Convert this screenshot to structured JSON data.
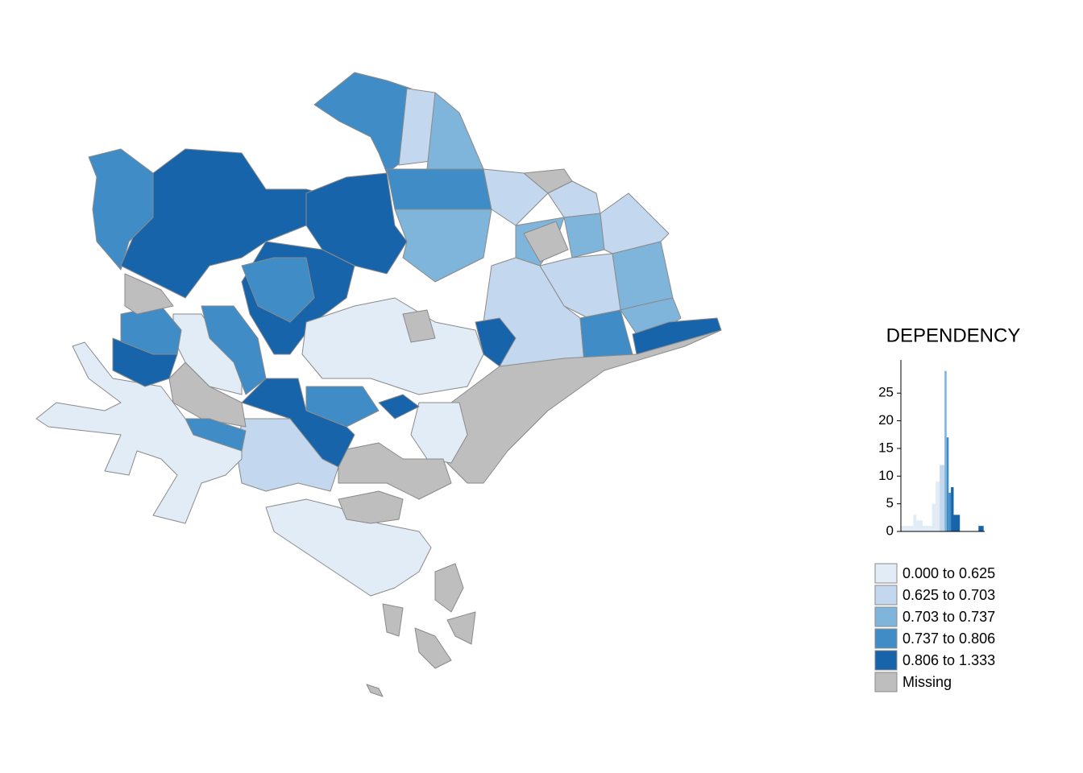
{
  "legend": {
    "title": "DEPENDENCY",
    "classes": [
      {
        "label": "0.000 to 0.625",
        "color": "#e1ecf7"
      },
      {
        "label": "0.625 to 0.703",
        "color": "#c3d8ee"
      },
      {
        "label": "0.703 to 0.737",
        "color": "#7fb5da"
      },
      {
        "label": "0.737 to 0.806",
        "color": "#3f8cc6"
      },
      {
        "label": "0.806 to 1.333",
        "color": "#1764ab"
      },
      {
        "label": "Missing",
        "color": "#bebebe"
      }
    ]
  },
  "chart_data": {
    "type": "histogram",
    "bins": [
      0,
      0.2,
      0.25,
      0.35,
      0.45,
      0.5,
      0.56,
      0.625,
      0.703,
      0.737,
      0.77,
      0.806,
      0.85,
      0.95,
      1.25,
      1.333
    ],
    "counts": [
      1,
      3,
      2,
      1,
      1,
      5,
      9,
      12,
      29,
      17,
      7,
      8,
      3,
      0,
      1
    ],
    "colors": [
      "#e1ecf7",
      "#e1ecf7",
      "#e1ecf7",
      "#e1ecf7",
      "#e1ecf7",
      "#e1ecf7",
      "#e1ecf7",
      "#c3d8ee",
      "#7fb5da",
      "#3f8cc6",
      "#3f8cc6",
      "#1764ab",
      "#1764ab",
      "#1764ab",
      "#1764ab"
    ],
    "xlim": [
      0,
      1.35
    ],
    "ylim": [
      0,
      31
    ],
    "yticks": [
      0,
      5,
      10,
      15,
      20,
      25
    ]
  }
}
